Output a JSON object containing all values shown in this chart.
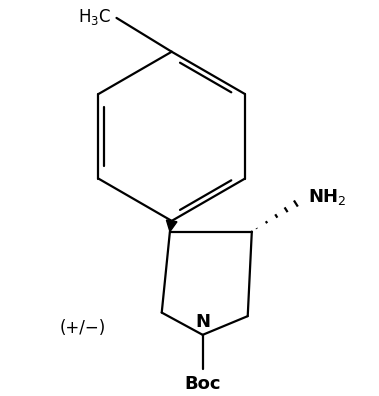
{
  "background": "#ffffff",
  "line_color": "#000000",
  "lw": 1.6,
  "dbo": 0.06,
  "figsize": [
    3.79,
    3.96
  ],
  "dpi": 100,
  "bx": 2.0,
  "by": 6.0,
  "br": 0.95
}
